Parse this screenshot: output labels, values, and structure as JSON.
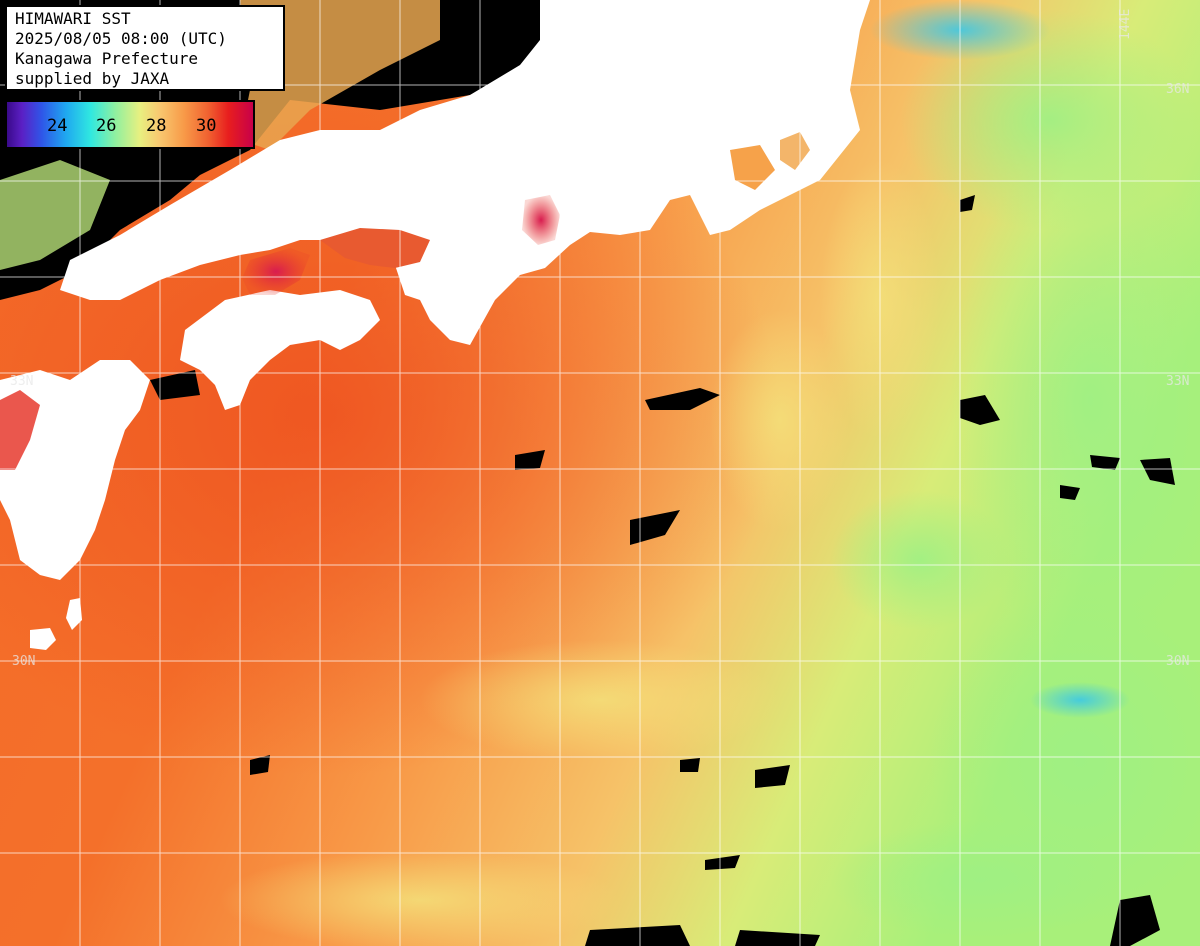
{
  "title_box": {
    "line1": "HIMAWARI SST",
    "line2": "2025/08/05 08:00 (UTC)",
    "line3": "Kanagawa Prefecture",
    "line4": "supplied by JAXA"
  },
  "legend": {
    "labels": [
      "24",
      "26",
      "28",
      "30"
    ],
    "colors": {
      "coldest": "#3a0a8a",
      "cool": "#1fa8f0",
      "mid": "#e8f080",
      "warm": "#f89a48",
      "hottest": "#c8004a"
    }
  },
  "grid_labels": {
    "lat_33_left": "33N",
    "lat_33_right": "33N",
    "lat_36_right": "36N",
    "lat_30_left": "30N",
    "lat_30_right": "30N",
    "lon_144": "144E"
  },
  "colors": {
    "land": "#ffffff",
    "no_data": "#000000",
    "warm_sea": "#f6772e",
    "mid_sea": "#f9b45a",
    "cool_sea": "#b8f06e",
    "grid": "#ffffff"
  }
}
